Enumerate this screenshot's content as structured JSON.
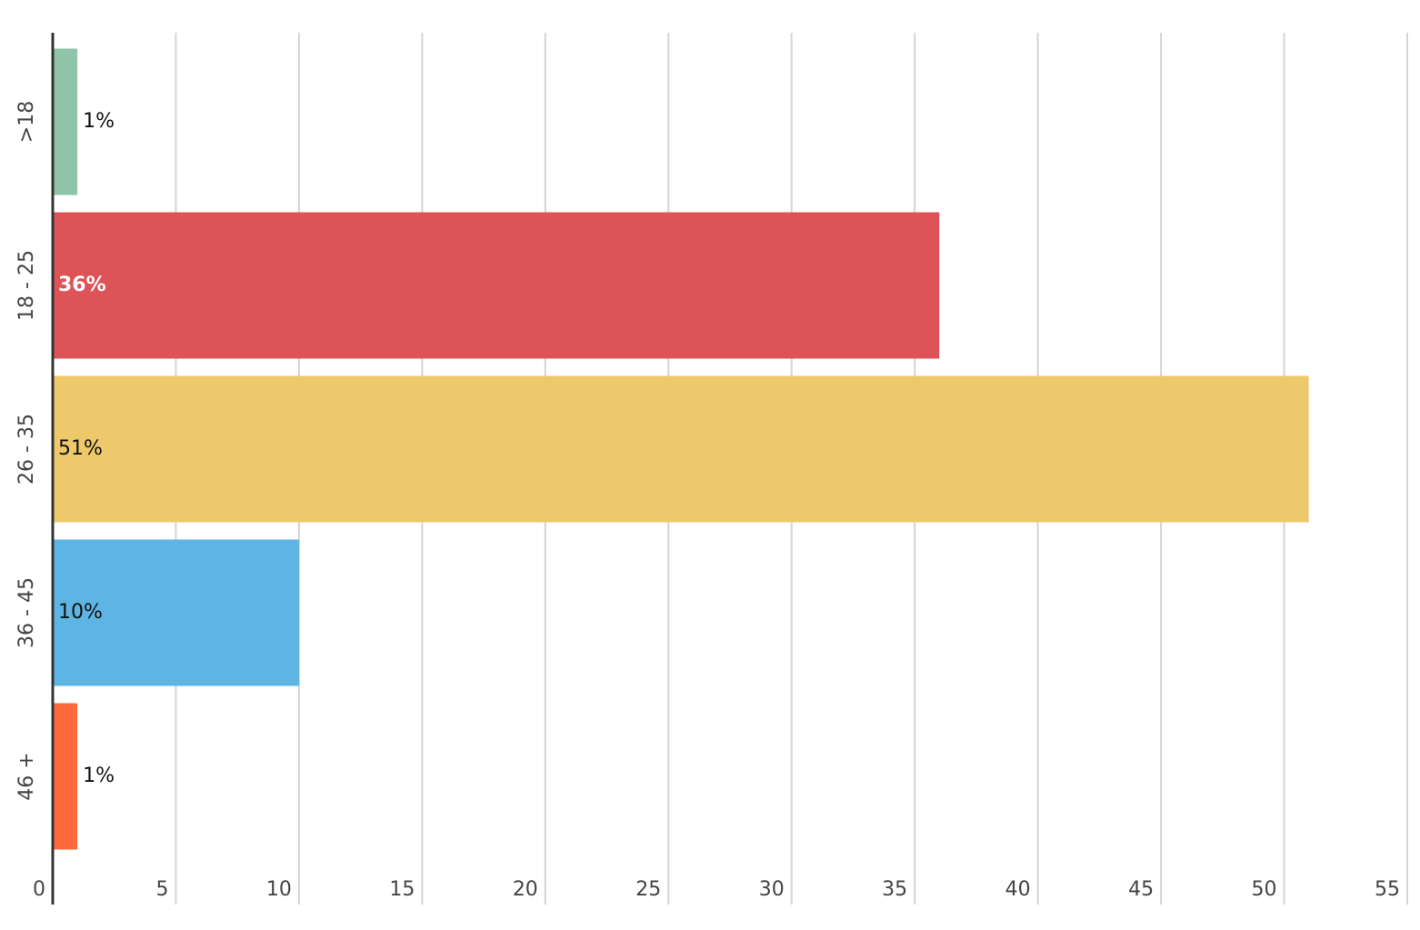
{
  "chart_data": {
    "type": "bar",
    "orientation": "horizontal",
    "categories": [
      ">18",
      "18 - 25",
      "26 - 35",
      "36 - 45",
      "46 +"
    ],
    "values": [
      1,
      36,
      51,
      10,
      1
    ],
    "value_labels": [
      "1%",
      "36%",
      "51%",
      "10%",
      "1%"
    ],
    "colors": [
      "#8fc4a8",
      "#dd5357",
      "#edc96b",
      "#5eb4e3",
      "#fc6a3b"
    ],
    "xlim": [
      0,
      55
    ],
    "xticks": [
      0,
      5,
      10,
      15,
      20,
      25,
      30,
      35,
      40,
      45,
      50,
      55
    ],
    "grid": true
  }
}
